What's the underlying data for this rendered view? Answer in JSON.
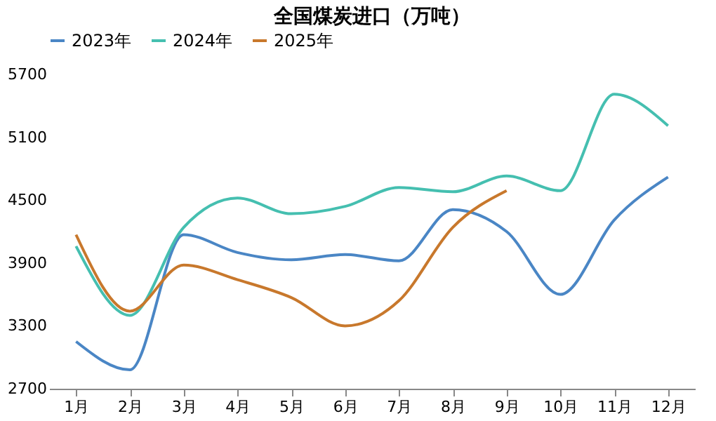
{
  "chart_data": {
    "type": "line",
    "title": "全国煤炭进口（万吨）",
    "categories": [
      "1月",
      "2月",
      "3月",
      "4月",
      "5月",
      "6月",
      "7月",
      "8月",
      "9月",
      "10月",
      "11月",
      "12月"
    ],
    "series": [
      {
        "name": "2023年",
        "color": "#4a86c5",
        "values": [
          3150,
          2880,
          4170,
          4000,
          3930,
          3980,
          3920,
          4410,
          4200,
          3600,
          4310,
          4720
        ]
      },
      {
        "name": "2024年",
        "color": "#45bfb0",
        "values": [
          4060,
          3400,
          4240,
          4520,
          4370,
          4440,
          4620,
          4580,
          4730,
          4590,
          5510,
          5210
        ]
      },
      {
        "name": "2025年",
        "color": "#c8782c",
        "values": [
          4170,
          3440,
          3880,
          3740,
          3570,
          3300,
          3540,
          4240,
          4590,
          null,
          null,
          null
        ]
      }
    ],
    "ylim": [
      2700,
      5700
    ],
    "yticks": [
      2700,
      3300,
      3900,
      4500,
      5100,
      5700
    ],
    "grid": false,
    "legend": "top",
    "marker": "none",
    "line_style": "solid"
  }
}
